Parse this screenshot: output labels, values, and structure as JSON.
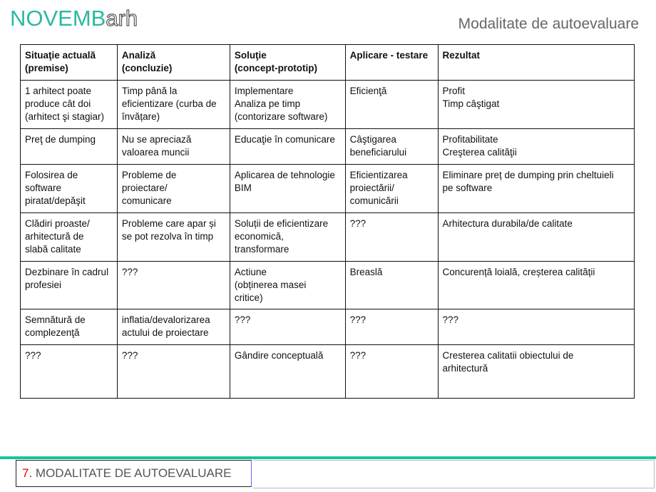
{
  "logo": {
    "part1": "NOVEMB",
    "part2": "arh"
  },
  "header": {
    "title": "Modalitate de autoevaluare"
  },
  "table": {
    "headers": [
      "Situaţie actuală\n(premise)",
      "Analiză\n(concluzie)",
      "Soluţie\n(concept-prototip)",
      "Aplicare - testare",
      "Rezultat"
    ],
    "rows": [
      [
        "1 arhitect poate\nproduce cât doi\n(arhitect şi stagiar)",
        "Timp până la\neficientizare (curba de\nînvățare)",
        "Implementare\nAnaliza pe timp\n(contorizare software)",
        "Eficienţă",
        "Profit\nTimp câştigat"
      ],
      [
        "Preţ de dumping",
        "Nu se apreciază\nvaloarea muncii",
        "Educaţie în comunicare",
        "Câştigarea\nbeneficiarului",
        "Profitabilitate\nCreşterea calităţii"
      ],
      [
        "Folosirea de\nsoftware\npiratat/depăşit",
        "Probleme de\nproiectare/\ncomunicare",
        "Aplicarea de tehnologie\nBIM",
        "Eficientizarea\nproiectării/\ncomunicării",
        "Eliminare preț de dumping prin cheltuieli\npe software"
      ],
      [
        "Clădiri proaste/\narhitectură de\nslabă calitate",
        "Probleme care apar și\nse pot rezolva în timp",
        "Soluții de eficientizare\neconomică,\ntransformare",
        "???",
        "Arhitectura durabila/de calitate"
      ],
      [
        "Dezbinare în cadrul\nprofesiei",
        "???",
        "Actiune\n(obținerea masei\ncritice)",
        "Breaslă",
        "Concurență loială, creșterea calității"
      ],
      [
        "Semnătură de\ncomplezenţă",
        "inflatia/devalorizarea\nactului de proiectare",
        "???",
        "???",
        "???"
      ],
      [
        "???",
        "???",
        "Gândire conceptuală",
        "???",
        "Cresterea calitatii obiectului de\narhitectură"
      ]
    ]
  },
  "footer": {
    "number": "7.",
    "label": " MODALITATE DE AUTOEVALUARE"
  },
  "colors": {
    "accent": "#16c49c",
    "number": "#e00000"
  }
}
